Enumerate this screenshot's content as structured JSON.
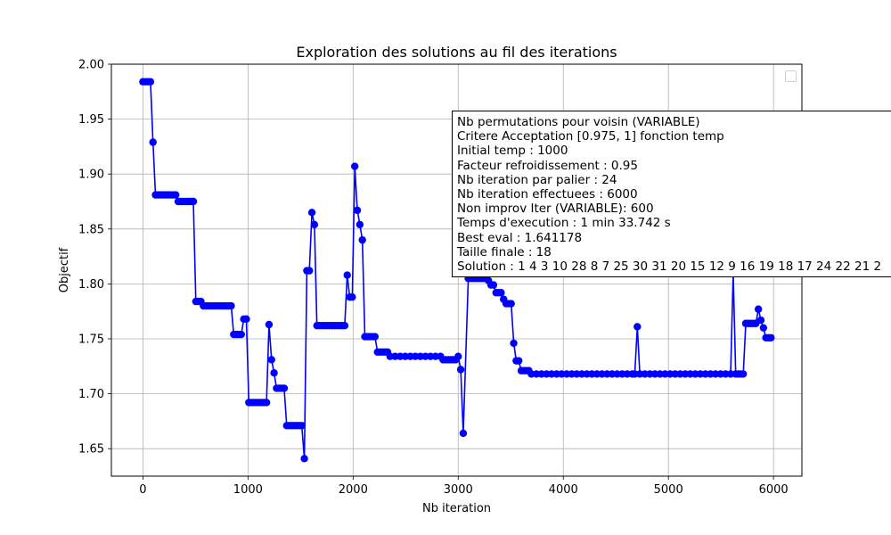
{
  "chart_data": {
    "type": "line",
    "title": "Exploration des solutions au fil des iterations",
    "xlabel": "Nb iteration",
    "ylabel": "Objectif",
    "xlim": [
      -300,
      6270
    ],
    "ylim": [
      1.625,
      2.0
    ],
    "xticks": [
      0,
      1000,
      2000,
      3000,
      4000,
      5000,
      6000
    ],
    "yticks": [
      1.65,
      1.7,
      1.75,
      1.8,
      1.85,
      1.9,
      1.95,
      2.0
    ],
    "xtick_labels": [
      "0",
      "1000",
      "2000",
      "3000",
      "4000",
      "5000",
      "6000"
    ],
    "ytick_labels": [
      "1.65",
      "1.70",
      "1.75",
      "1.80",
      "1.85",
      "1.90",
      "1.95",
      "2.00"
    ],
    "grid": true,
    "legend": "top-right (empty)",
    "series": [
      {
        "color": "#0000ff",
        "marker": "circle",
        "points": [
          [
            0,
            1.984
          ],
          [
            24,
            1.984
          ],
          [
            48,
            1.984
          ],
          [
            72,
            1.984
          ],
          [
            96,
            1.929
          ],
          [
            120,
            1.881
          ],
          [
            144,
            1.881
          ],
          [
            168,
            1.881
          ],
          [
            192,
            1.881
          ],
          [
            216,
            1.881
          ],
          [
            240,
            1.881
          ],
          [
            264,
            1.881
          ],
          [
            288,
            1.881
          ],
          [
            312,
            1.881
          ],
          [
            336,
            1.875
          ],
          [
            360,
            1.875
          ],
          [
            384,
            1.875
          ],
          [
            408,
            1.875
          ],
          [
            432,
            1.875
          ],
          [
            456,
            1.875
          ],
          [
            480,
            1.875
          ],
          [
            504,
            1.784
          ],
          [
            528,
            1.784
          ],
          [
            552,
            1.784
          ],
          [
            576,
            1.78
          ],
          [
            600,
            1.78
          ],
          [
            624,
            1.78
          ],
          [
            648,
            1.78
          ],
          [
            672,
            1.78
          ],
          [
            696,
            1.78
          ],
          [
            720,
            1.78
          ],
          [
            744,
            1.78
          ],
          [
            768,
            1.78
          ],
          [
            792,
            1.78
          ],
          [
            816,
            1.78
          ],
          [
            840,
            1.78
          ],
          [
            864,
            1.754
          ],
          [
            888,
            1.754
          ],
          [
            912,
            1.754
          ],
          [
            936,
            1.754
          ],
          [
            960,
            1.768
          ],
          [
            984,
            1.768
          ],
          [
            1008,
            1.692
          ],
          [
            1032,
            1.692
          ],
          [
            1056,
            1.692
          ],
          [
            1080,
            1.692
          ],
          [
            1104,
            1.692
          ],
          [
            1128,
            1.692
          ],
          [
            1152,
            1.692
          ],
          [
            1176,
            1.692
          ],
          [
            1200,
            1.763
          ],
          [
            1224,
            1.731
          ],
          [
            1248,
            1.719
          ],
          [
            1272,
            1.705
          ],
          [
            1296,
            1.705
          ],
          [
            1320,
            1.705
          ],
          [
            1344,
            1.705
          ],
          [
            1368,
            1.671
          ],
          [
            1392,
            1.671
          ],
          [
            1416,
            1.671
          ],
          [
            1440,
            1.671
          ],
          [
            1464,
            1.671
          ],
          [
            1488,
            1.671
          ],
          [
            1512,
            1.671
          ],
          [
            1536,
            1.641
          ],
          [
            1560,
            1.812
          ],
          [
            1584,
            1.812
          ],
          [
            1608,
            1.865
          ],
          [
            1632,
            1.854
          ],
          [
            1656,
            1.762
          ],
          [
            1680,
            1.762
          ],
          [
            1704,
            1.762
          ],
          [
            1728,
            1.762
          ],
          [
            1752,
            1.762
          ],
          [
            1776,
            1.762
          ],
          [
            1800,
            1.762
          ],
          [
            1824,
            1.762
          ],
          [
            1848,
            1.762
          ],
          [
            1872,
            1.762
          ],
          [
            1896,
            1.762
          ],
          [
            1920,
            1.762
          ],
          [
            1944,
            1.808
          ],
          [
            1968,
            1.788
          ],
          [
            1992,
            1.788
          ],
          [
            2016,
            1.907
          ],
          [
            2040,
            1.867
          ],
          [
            2064,
            1.854
          ],
          [
            2088,
            1.84
          ],
          [
            2112,
            1.752
          ],
          [
            2136,
            1.752
          ],
          [
            2160,
            1.752
          ],
          [
            2184,
            1.752
          ],
          [
            2208,
            1.752
          ],
          [
            2232,
            1.738
          ],
          [
            2256,
            1.738
          ],
          [
            2280,
            1.738
          ],
          [
            2304,
            1.738
          ],
          [
            2328,
            1.738
          ],
          [
            2352,
            1.734
          ],
          [
            2400,
            1.734
          ],
          [
            2448,
            1.734
          ],
          [
            2496,
            1.734
          ],
          [
            2544,
            1.734
          ],
          [
            2592,
            1.734
          ],
          [
            2640,
            1.734
          ],
          [
            2688,
            1.734
          ],
          [
            2736,
            1.734
          ],
          [
            2784,
            1.734
          ],
          [
            2832,
            1.734
          ],
          [
            2856,
            1.731
          ],
          [
            2880,
            1.731
          ],
          [
            2904,
            1.731
          ],
          [
            2928,
            1.731
          ],
          [
            2952,
            1.731
          ],
          [
            2976,
            1.731
          ],
          [
            3000,
            1.734
          ],
          [
            3024,
            1.722
          ],
          [
            3048,
            1.664
          ],
          [
            3096,
            1.805
          ],
          [
            3120,
            1.805
          ],
          [
            3144,
            1.805
          ],
          [
            3168,
            1.805
          ],
          [
            3192,
            1.805
          ],
          [
            3216,
            1.805
          ],
          [
            3240,
            1.805
          ],
          [
            3264,
            1.805
          ],
          [
            3288,
            1.803
          ],
          [
            3312,
            1.799
          ],
          [
            3336,
            1.799
          ],
          [
            3360,
            1.792
          ],
          [
            3384,
            1.792
          ],
          [
            3408,
            1.792
          ],
          [
            3432,
            1.786
          ],
          [
            3456,
            1.782
          ],
          [
            3480,
            1.782
          ],
          [
            3504,
            1.782
          ],
          [
            3528,
            1.746
          ],
          [
            3552,
            1.73
          ],
          [
            3576,
            1.73
          ],
          [
            3600,
            1.721
          ],
          [
            3624,
            1.721
          ],
          [
            3648,
            1.721
          ],
          [
            3672,
            1.721
          ],
          [
            3696,
            1.718
          ],
          [
            3744,
            1.718
          ],
          [
            3792,
            1.718
          ],
          [
            3840,
            1.718
          ],
          [
            3888,
            1.718
          ],
          [
            3936,
            1.718
          ],
          [
            3984,
            1.718
          ],
          [
            4032,
            1.718
          ],
          [
            4080,
            1.718
          ],
          [
            4128,
            1.718
          ],
          [
            4176,
            1.718
          ],
          [
            4224,
            1.718
          ],
          [
            4272,
            1.718
          ],
          [
            4320,
            1.718
          ],
          [
            4368,
            1.718
          ],
          [
            4416,
            1.718
          ],
          [
            4464,
            1.718
          ],
          [
            4512,
            1.718
          ],
          [
            4560,
            1.718
          ],
          [
            4608,
            1.718
          ],
          [
            4656,
            1.718
          ],
          [
            4680,
            1.718
          ],
          [
            4704,
            1.761
          ],
          [
            4728,
            1.718
          ],
          [
            4776,
            1.718
          ],
          [
            4824,
            1.718
          ],
          [
            4872,
            1.718
          ],
          [
            4920,
            1.718
          ],
          [
            4968,
            1.718
          ],
          [
            5016,
            1.718
          ],
          [
            5064,
            1.718
          ],
          [
            5112,
            1.718
          ],
          [
            5160,
            1.718
          ],
          [
            5208,
            1.718
          ],
          [
            5256,
            1.718
          ],
          [
            5304,
            1.718
          ],
          [
            5352,
            1.718
          ],
          [
            5400,
            1.718
          ],
          [
            5448,
            1.718
          ],
          [
            5496,
            1.718
          ],
          [
            5544,
            1.718
          ],
          [
            5592,
            1.718
          ],
          [
            5616,
            1.81
          ],
          [
            5640,
            1.718
          ],
          [
            5664,
            1.718
          ],
          [
            5688,
            1.718
          ],
          [
            5712,
            1.718
          ],
          [
            5736,
            1.764
          ],
          [
            5760,
            1.764
          ],
          [
            5784,
            1.764
          ],
          [
            5808,
            1.764
          ],
          [
            5832,
            1.764
          ],
          [
            5856,
            1.777
          ],
          [
            5880,
            1.767
          ],
          [
            5904,
            1.76
          ],
          [
            5928,
            1.751
          ],
          [
            5952,
            1.751
          ],
          [
            5976,
            1.751
          ]
        ]
      }
    ],
    "annotation": [
      "Nb permutations pour voisin (VARIABLE)",
      "Critere Acceptation [0.975, 1] fonction temp",
      "Initial temp : 1000",
      "Facteur refroidissement : 0.95",
      "Nb iteration par palier : 24",
      "Nb iteration effectuees : 6000",
      "Non improv Iter (VARIABLE): 600",
      "Temps d'execution : 1 min 33.742 s",
      "Best eval : 1.641178",
      "Taille finale : 18",
      "Solution : 1 4 3 10 28 8 7 25 30 31 20 15 12 9 16 19 18 17 24 22 21 2"
    ]
  }
}
